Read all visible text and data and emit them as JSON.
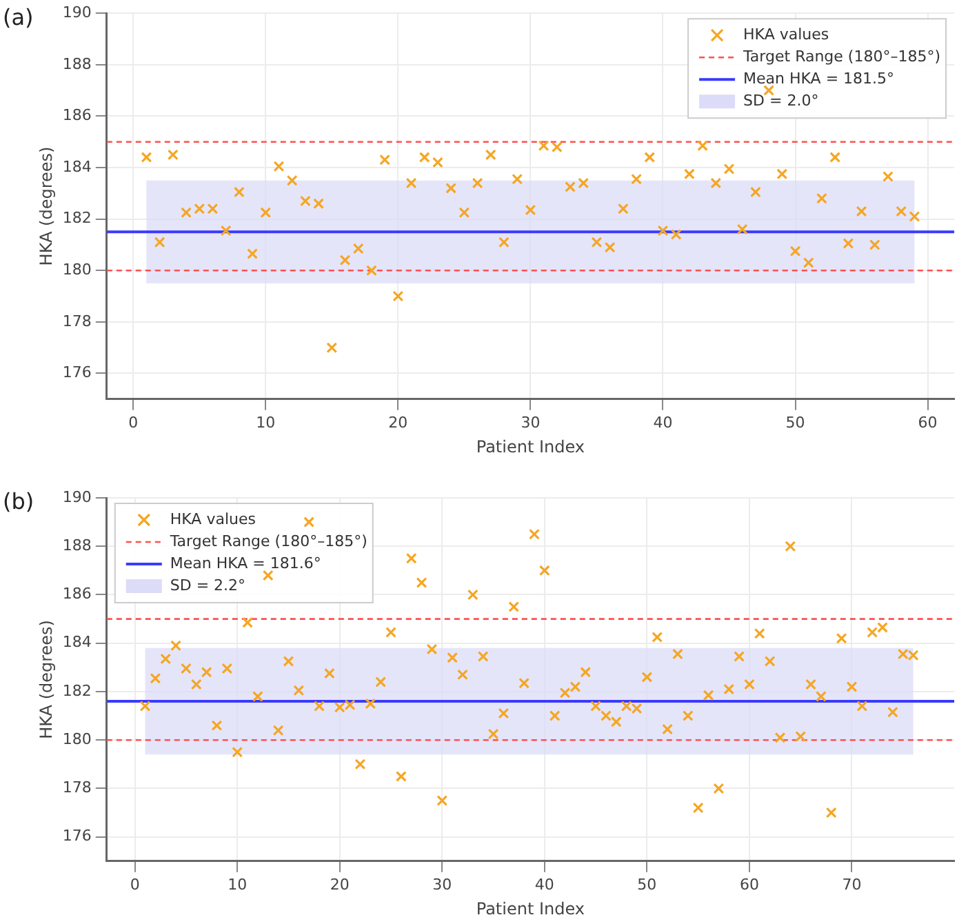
{
  "chart_data": [
    {
      "type": "scatter",
      "annotations": [
        "(a)"
      ],
      "xlabel": "Patient Index",
      "ylabel": "HKA (degrees)",
      "xlim": [
        -2,
        62
      ],
      "xticks": [
        0,
        10,
        20,
        30,
        40,
        50,
        60
      ],
      "ylim": [
        175,
        190
      ],
      "yticks": [
        176,
        178,
        180,
        182,
        184,
        186,
        188,
        190
      ],
      "grid": true,
      "legend": "top right",
      "marker": "cross",
      "series": [
        {
          "name": "HKA values",
          "color": "#f5a623",
          "x": [
            1,
            2,
            3,
            4,
            5,
            6,
            7,
            8,
            9,
            10,
            11,
            12,
            13,
            14,
            15,
            16,
            17,
            18,
            19,
            20,
            21,
            22,
            23,
            24,
            25,
            26,
            27,
            28,
            29,
            30,
            31,
            32,
            33,
            34,
            35,
            36,
            37,
            38,
            39,
            40,
            41,
            42,
            43,
            44,
            45,
            46,
            47,
            48,
            49,
            50,
            51,
            52,
            53,
            54,
            55,
            56,
            57,
            58,
            59
          ],
          "values": [
            184.4,
            181.1,
            184.5,
            182.25,
            182.4,
            182.4,
            181.55,
            183.05,
            180.65,
            182.25,
            184.05,
            183.5,
            182.7,
            182.6,
            177.0,
            180.4,
            180.85,
            180.0,
            184.3,
            179.0,
            183.4,
            184.4,
            184.2,
            183.2,
            182.25,
            183.4,
            184.5,
            181.1,
            183.55,
            182.35,
            184.85,
            184.8,
            183.25,
            183.4,
            181.1,
            180.9,
            182.4,
            183.55,
            184.4,
            181.55,
            181.4,
            183.75,
            184.85,
            183.4,
            183.95,
            181.6,
            183.05,
            187.0,
            183.75,
            180.75,
            180.3,
            182.8,
            184.4,
            181.05,
            182.3,
            181.0,
            183.65,
            182.3,
            182.1
          ]
        }
      ],
      "ref_lines": [
        {
          "axis": "y",
          "value": 185,
          "label": "Target Range (180°–185°)",
          "color": "#ff5050",
          "line_style": "dashed"
        },
        {
          "axis": "y",
          "value": 180,
          "color": "#ff5050",
          "line_style": "dashed"
        },
        {
          "axis": "y",
          "value": 181.5,
          "label": "Mean HKA = 181.5°",
          "color": "#3a3aff",
          "line_style": "solid"
        }
      ],
      "bands": [
        {
          "axis": "y",
          "from": 179.5,
          "to": 183.5,
          "label": "SD = 2.0°",
          "color": "#dcdcf8"
        }
      ]
    },
    {
      "type": "scatter",
      "annotations": [
        "(b)"
      ],
      "xlabel": "Patient Index",
      "ylabel": "HKA (degrees)",
      "xlim": [
        -2.75,
        80
      ],
      "xticks": [
        0,
        10,
        20,
        30,
        40,
        50,
        60,
        70
      ],
      "ylim": [
        175,
        190
      ],
      "yticks": [
        176,
        178,
        180,
        182,
        184,
        186,
        188,
        190
      ],
      "grid": true,
      "legend": "top left",
      "marker": "cross",
      "series": [
        {
          "name": "HKA values",
          "color": "#f5a623",
          "x": [
            1,
            2,
            3,
            4,
            5,
            6,
            7,
            8,
            9,
            10,
            11,
            12,
            13,
            14,
            15,
            16,
            17,
            18,
            19,
            20,
            21,
            22,
            23,
            24,
            25,
            26,
            27,
            28,
            29,
            30,
            31,
            32,
            33,
            34,
            35,
            36,
            37,
            38,
            39,
            40,
            41,
            42,
            43,
            44,
            45,
            46,
            47,
            48,
            49,
            50,
            51,
            52,
            53,
            54,
            55,
            56,
            57,
            58,
            59,
            60,
            61,
            62,
            63,
            64,
            65,
            66,
            67,
            68,
            69,
            70,
            71,
            72,
            73,
            74,
            75,
            76
          ],
          "values": [
            181.4,
            182.55,
            183.35,
            183.9,
            182.95,
            182.3,
            182.8,
            180.6,
            182.95,
            179.5,
            184.85,
            181.8,
            186.8,
            180.4,
            183.25,
            182.05,
            189.0,
            181.4,
            182.75,
            181.35,
            181.45,
            179.0,
            181.5,
            182.4,
            184.45,
            178.5,
            187.5,
            186.5,
            183.75,
            177.5,
            183.4,
            182.7,
            186.0,
            183.45,
            180.25,
            181.1,
            185.5,
            182.35,
            188.5,
            187.0,
            181.0,
            181.95,
            182.2,
            182.8,
            181.4,
            181.0,
            180.75,
            181.4,
            181.3,
            182.6,
            184.25,
            180.45,
            183.55,
            181.0,
            177.2,
            181.85,
            178.0,
            182.1,
            183.45,
            182.3,
            184.4,
            183.25,
            180.1,
            188.0,
            180.15,
            182.3,
            181.8,
            177.0,
            184.2,
            182.2,
            181.4,
            184.45,
            184.65,
            181.15,
            183.55,
            183.5
          ]
        }
      ],
      "ref_lines": [
        {
          "axis": "y",
          "value": 185,
          "label": "Target Range (180°–185°)",
          "color": "#ff5050",
          "line_style": "dashed"
        },
        {
          "axis": "y",
          "value": 180,
          "color": "#ff5050",
          "line_style": "dashed"
        },
        {
          "axis": "y",
          "value": 181.6,
          "label": "Mean HKA = 181.6°",
          "color": "#3a3aff",
          "line_style": "solid"
        }
      ],
      "bands": [
        {
          "axis": "y",
          "from": 179.4,
          "to": 183.8,
          "label": "SD = 2.2°",
          "color": "#dcdcf8"
        }
      ]
    }
  ]
}
